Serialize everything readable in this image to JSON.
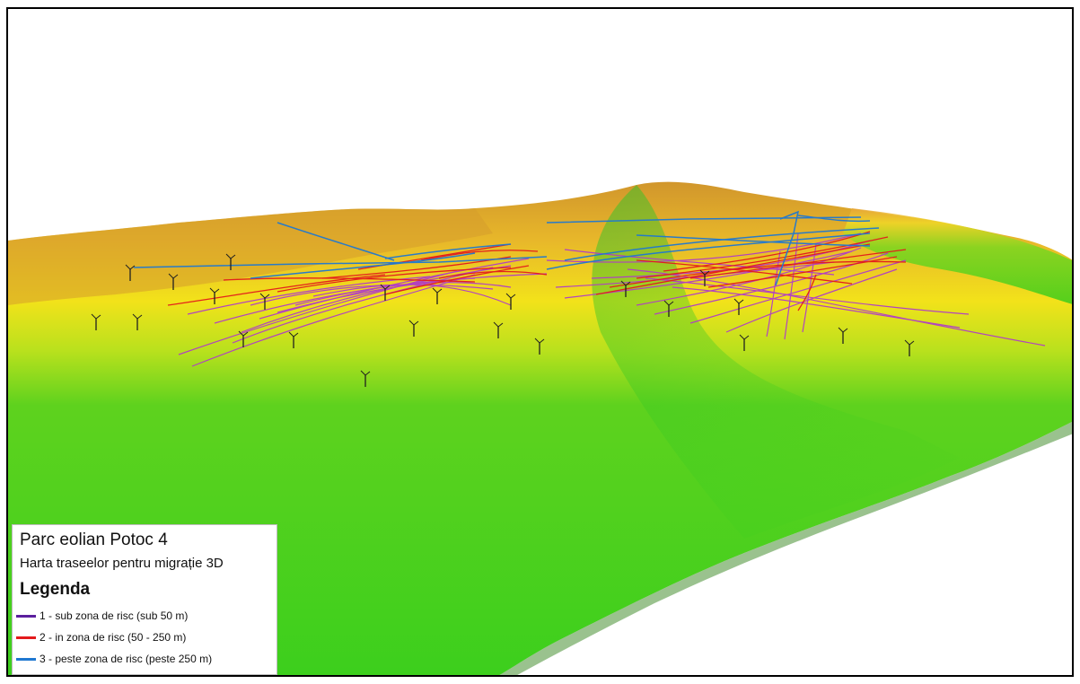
{
  "map": {
    "title": "Parc eolian Potoc 4",
    "subtitle": "Harta traseelor pentru migrație 3D",
    "legend_title": "Legenda",
    "legend_items": [
      {
        "label": "1 - sub zona de risc (sub 50 m)",
        "color": "#5b1f9e"
      },
      {
        "label": "2 - in zona de risc (50 - 250 m)",
        "color": "#e31a1c"
      },
      {
        "label": "3 - peste zona de risc (peste 250 m)",
        "color": "#1f78d1"
      }
    ],
    "colors": {
      "terrain_high": "#d99a2b",
      "terrain_mid": "#f2e21a",
      "terrain_low": "#3fd01e",
      "track_low_alt": "#b03cc8",
      "track_risk_zone": "#e31a1c",
      "track_above_risk": "#1f78d1",
      "turbine": "#202020"
    }
  }
}
